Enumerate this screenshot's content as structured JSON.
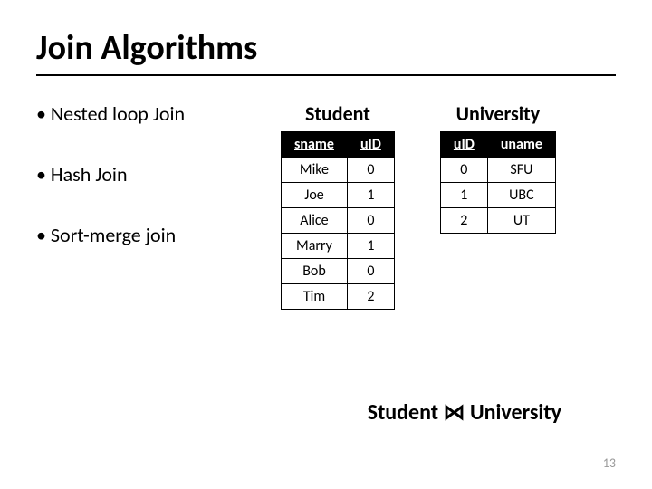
{
  "title": "Join  Algorithms",
  "bullets": [
    "• Nested  loop  Join",
    "• Hash  Join",
    "• Sort-merge  join"
  ],
  "student_table": {
    "title": "Student",
    "columns": [
      "sname",
      "uID"
    ],
    "rows": [
      [
        "Mike",
        "0"
      ],
      [
        "Joe",
        "1"
      ],
      [
        "Alice",
        "0"
      ],
      [
        "Marry",
        "1"
      ],
      [
        "Bob",
        "0"
      ],
      [
        "Tim",
        "2"
      ]
    ],
    "header_bg": "#000000",
    "header_fg": "#ffffff",
    "cell_fg": "#000000",
    "border_color": "#000000"
  },
  "university_table": {
    "title": "University",
    "columns": [
      "uID",
      "uname"
    ],
    "rows": [
      [
        "0",
        "SFU"
      ],
      [
        "1",
        "UBC"
      ],
      [
        "2",
        "UT"
      ]
    ],
    "header_bg": "#000000",
    "header_fg": "#ffffff",
    "cell_fg": "#000000",
    "border_color": "#000000"
  },
  "join_expression": "Student ⋈ University",
  "page_number": "13",
  "typography": {
    "title_fontsize": 38,
    "bullet_fontsize": 22,
    "table_title_fontsize": 22,
    "table_cell_fontsize": 16,
    "join_expr_fontsize": 24,
    "page_num_fontsize": 14
  },
  "colors": {
    "background": "#ffffff",
    "text": "#000000",
    "page_num": "#999999"
  }
}
